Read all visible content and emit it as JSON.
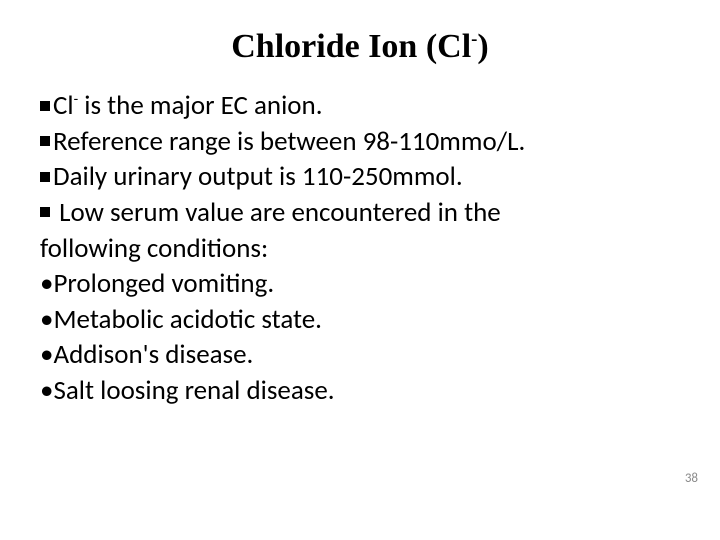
{
  "slide": {
    "title_prefix": "Chloride Ion (Cl",
    "title_super": "-",
    "title_suffix": ")",
    "title_fontsize": 34,
    "title_font": "Times New Roman",
    "body_fontsize": 27,
    "body_font": "Calibri",
    "background_color": "#ffffff",
    "text_color": "#000000",
    "page_number": "38",
    "page_number_color": "#8a8a8a",
    "lines": {
      "l1a": "Cl",
      "l1sup": "-",
      "l1b": " is the major EC anion.",
      "l2": "Reference range is between 98-110mmo/L.",
      "l3": "Daily urinary output is 110-250mmol.",
      "l4": " Low serum value are encountered in the",
      "l4b": "following conditions:",
      "l5": "Prolonged vomiting.",
      "l6": "Metabolic acidotic state.",
      "l7": "Addison's disease.",
      "l8": "Salt loosing renal disease."
    },
    "bullets": {
      "square": "■",
      "dot": "•"
    }
  }
}
